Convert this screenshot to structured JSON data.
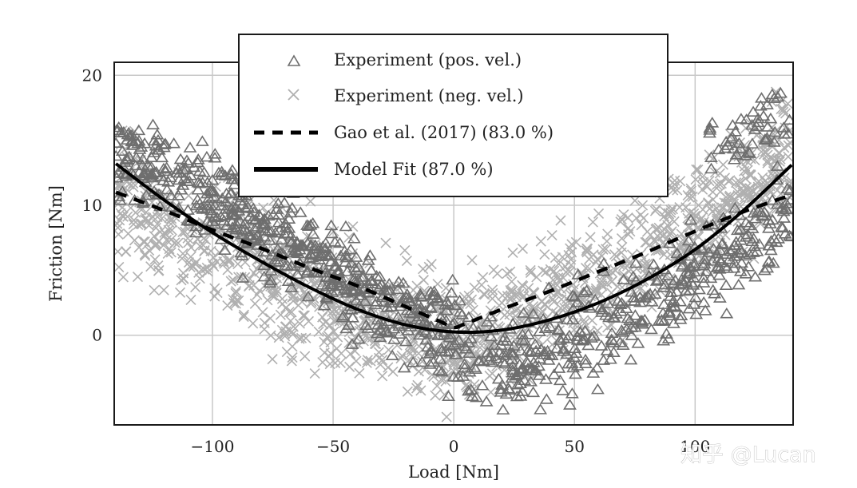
{
  "chart_data": {
    "type": "scatter",
    "title": "",
    "xlabel": "Load [Nm]",
    "ylabel": "Friction [Nm]",
    "xlim": [
      -140.7,
      140.6
    ],
    "ylim": [
      -6.9,
      21.0
    ],
    "xticks": [
      -100,
      -50,
      0,
      50,
      100
    ],
    "xtick_labels": [
      "−100",
      "−50",
      "0",
      "50",
      "100"
    ],
    "yticks": [
      0,
      10,
      20
    ],
    "ytick_labels": [
      "0",
      "10",
      "20"
    ],
    "grid": true,
    "legend_position": "top-center",
    "series": [
      {
        "name": "Experiment (pos. vel.)",
        "kind": "scatter",
        "marker": "triangle",
        "color": "#6e6e6e",
        "count": 900,
        "band": {
          "x_range": [
            -140,
            140
          ],
          "left_center": [
            [
              -140,
              14.0
            ],
            [
              -100,
              10.5
            ],
            [
              -50,
              5.0
            ],
            [
              0,
              -1.0
            ],
            [
              30,
              -2.0
            ],
            [
              60,
              0.0
            ],
            [
              100,
              4.5
            ],
            [
              140,
              9.5
            ]
          ],
          "spread": 2.6,
          "upper_tail_left": [
            [
              -140,
              16.5
            ],
            [
              -70,
              7.5
            ],
            [
              0,
              2.5
            ]
          ],
          "upper_tail_right": [
            [
              110,
              16.5
            ],
            [
              140,
              19.5
            ]
          ]
        }
      },
      {
        "name": "Experiment (neg. vel.)",
        "kind": "scatter",
        "marker": "x",
        "color": "#b0b0b0",
        "count": 1400,
        "band": {
          "x_range": [
            -140,
            140
          ],
          "center": [
            [
              -140,
              10.5
            ],
            [
              -100,
              6.5
            ],
            [
              -50,
              2.5
            ],
            [
              0,
              -0.8
            ],
            [
              50,
              3.5
            ],
            [
              100,
              9.0
            ],
            [
              140,
              14.0
            ]
          ],
          "spread": 3.0
        }
      },
      {
        "name": "Gao et al. (2017) (83.0 %)",
        "kind": "line",
        "style": "dashed",
        "color": "#000000",
        "x": [
          -140,
          -120,
          -100,
          -80,
          -60,
          -40,
          -20,
          -5,
          0,
          5,
          20,
          40,
          60,
          80,
          100,
          120,
          140
        ],
        "y": [
          11.0,
          9.6,
          8.1,
          6.7,
          5.2,
          3.8,
          2.2,
          1.0,
          0.6,
          0.9,
          2.0,
          3.4,
          4.9,
          6.4,
          8.0,
          9.5,
          10.8
        ]
      },
      {
        "name": "Model Fit (87.0 %)",
        "kind": "line",
        "style": "solid",
        "color": "#000000",
        "x": [
          -140,
          -120,
          -100,
          -80,
          -60,
          -40,
          -20,
          0,
          20,
          40,
          60,
          80,
          100,
          120,
          140
        ],
        "y": [
          13.2,
          10.4,
          7.9,
          5.7,
          3.7,
          2.0,
          0.8,
          0.25,
          0.4,
          1.2,
          2.5,
          4.3,
          6.6,
          9.6,
          13.1
        ]
      }
    ]
  },
  "legend": {
    "items": [
      {
        "label": "Experiment (pos. vel.)",
        "symbol": "triangle"
      },
      {
        "label": "Experiment (neg. vel.)",
        "symbol": "x"
      },
      {
        "label": "Gao et al. (2017) (83.0 %)",
        "symbol": "dashed-line"
      },
      {
        "label": "Model Fit (87.0 %)",
        "symbol": "solid-line"
      }
    ]
  },
  "watermark": {
    "text": "知乎 @Lucan"
  }
}
